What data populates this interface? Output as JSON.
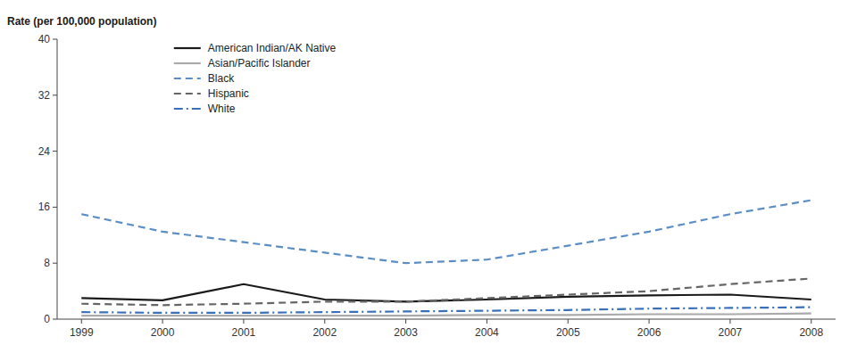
{
  "chart_data": {
    "type": "line",
    "y_label": "Rate (per 100,000 population)",
    "x": [
      1999,
      2000,
      2001,
      2002,
      2003,
      2004,
      2005,
      2006,
      2007,
      2008
    ],
    "series": [
      {
        "name": "American Indian/AK Native",
        "color": "#1a1a1a",
        "line_style": "solid",
        "values": [
          3.0,
          2.7,
          5.0,
          2.8,
          2.5,
          2.8,
          3.2,
          3.4,
          3.5,
          2.8
        ]
      },
      {
        "name": "Asian/Pacific Islander",
        "color": "#aaaaaa",
        "line_style": "solid",
        "values": [
          0.5,
          0.5,
          0.5,
          0.5,
          0.5,
          0.6,
          0.6,
          0.7,
          0.7,
          0.8
        ]
      },
      {
        "name": "Black",
        "color": "#5b8ec4",
        "line_style": "dashed",
        "values": [
          15.0,
          12.5,
          11.0,
          9.5,
          8.0,
          8.5,
          10.5,
          12.5,
          15.0,
          17.0
        ]
      },
      {
        "name": "Hispanic",
        "color": "#666666",
        "line_style": "dashed",
        "values": [
          2.2,
          2.0,
          2.2,
          2.5,
          2.5,
          3.0,
          3.5,
          4.0,
          5.0,
          5.8
        ]
      },
      {
        "name": "White",
        "color": "#3a6fba",
        "line_style": "dashdot",
        "values": [
          1.0,
          0.9,
          0.9,
          1.0,
          1.1,
          1.2,
          1.3,
          1.5,
          1.6,
          1.7
        ]
      }
    ],
    "xlim": [
      1998.7,
      2008.3
    ],
    "xticks": [
      1999,
      2000,
      2001,
      2002,
      2003,
      2004,
      2005,
      2006,
      2007,
      2008
    ],
    "ylim": [
      0,
      40
    ],
    "yticks": [
      0,
      8,
      16,
      24,
      32,
      40
    ],
    "grid": false,
    "legend": "upper left"
  }
}
